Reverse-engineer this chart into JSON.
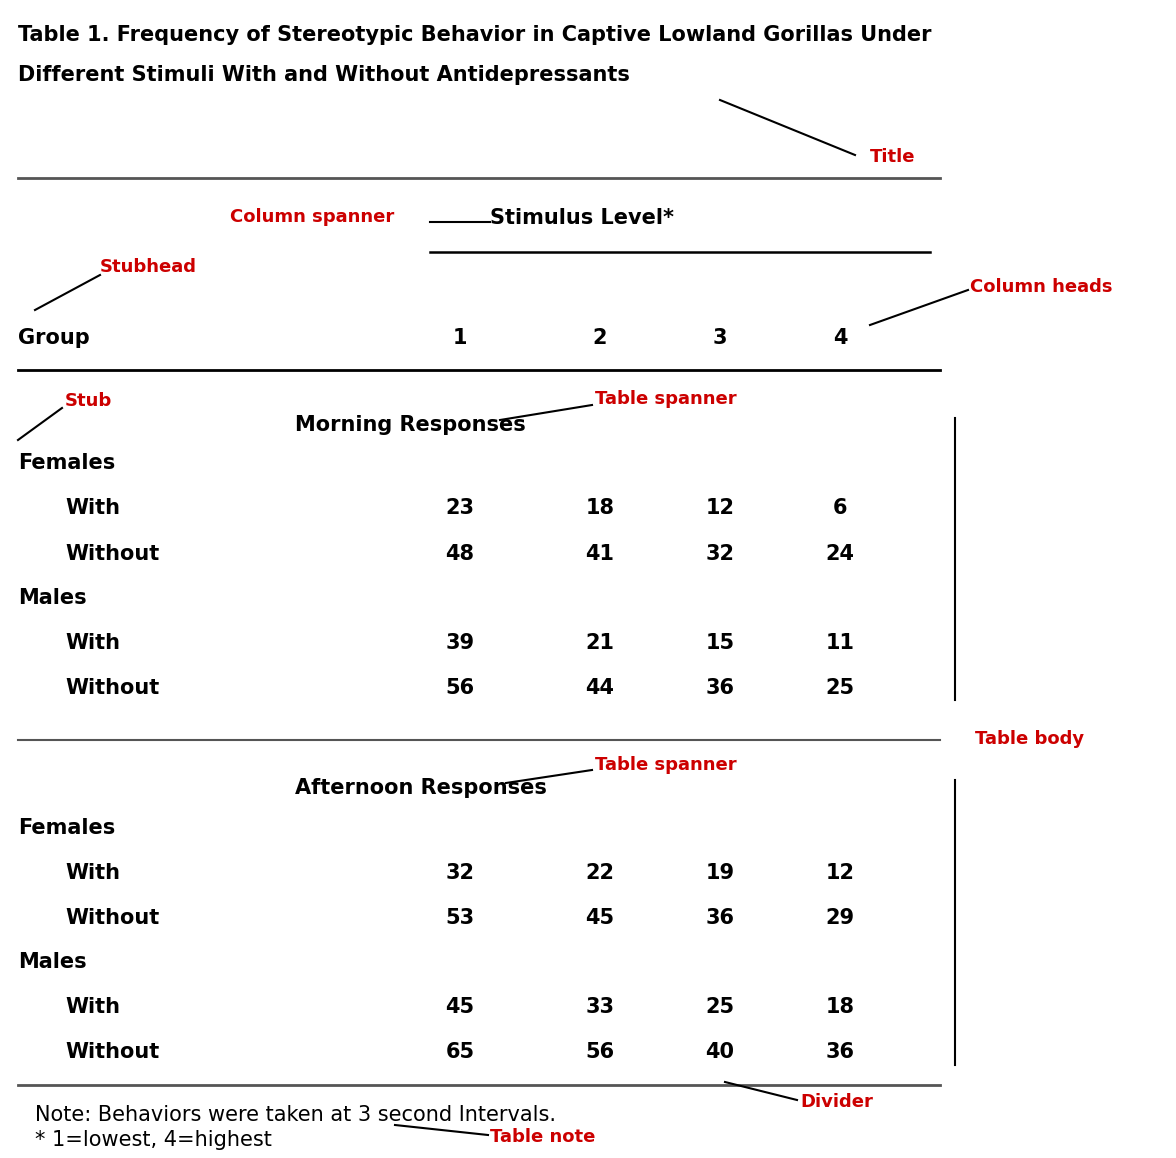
{
  "title_line1": "Table 1. Frequency of Stereotypic Behavior in Captive Lowland Gorillas Under",
  "title_line2": "Different Stimuli With and Without Antidepressants",
  "column_spanner": "Stimulus Level*",
  "stubhead": "Group",
  "col_heads": [
    "1",
    "2",
    "3",
    "4"
  ],
  "morning_spanner": "Morning Responses",
  "afternoon_spanner": "Afternoon Responses",
  "morning_data": {
    "Females": {
      "With": [
        "23",
        "18",
        "12",
        "6"
      ],
      "Without": [
        "48",
        "41",
        "32",
        "24"
      ]
    },
    "Males": {
      "With": [
        "39",
        "21",
        "15",
        "11"
      ],
      "Without": [
        "56",
        "44",
        "36",
        "25"
      ]
    }
  },
  "afternoon_data": {
    "Females": {
      "With": [
        "32",
        "22",
        "19",
        "12"
      ],
      "Without": [
        "53",
        "45",
        "36",
        "29"
      ]
    },
    "Males": {
      "With": [
        "45",
        "33",
        "25",
        "18"
      ],
      "Without": [
        "65",
        "56",
        "40",
        "36"
      ]
    }
  },
  "note_line1": "Note: Behaviors were taken at 3 second Intervals.",
  "note_line2": "* 1=lowest, 4=highest",
  "label_title": "Title",
  "label_col_spanner": "Column spanner",
  "label_stubhead": "Stubhead",
  "label_col_heads": "Column heads",
  "label_stub": "Stub",
  "label_table_spanner1": "Table spanner",
  "label_table_spanner2": "Table spanner",
  "label_table_body": "Table body",
  "label_divider": "Divider",
  "label_table_note": "Table note",
  "red_color": "#CC0000",
  "black_color": "#000000",
  "bg_color": "#ffffff",
  "title_fs": 15,
  "body_fs": 15,
  "label_fs": 13
}
